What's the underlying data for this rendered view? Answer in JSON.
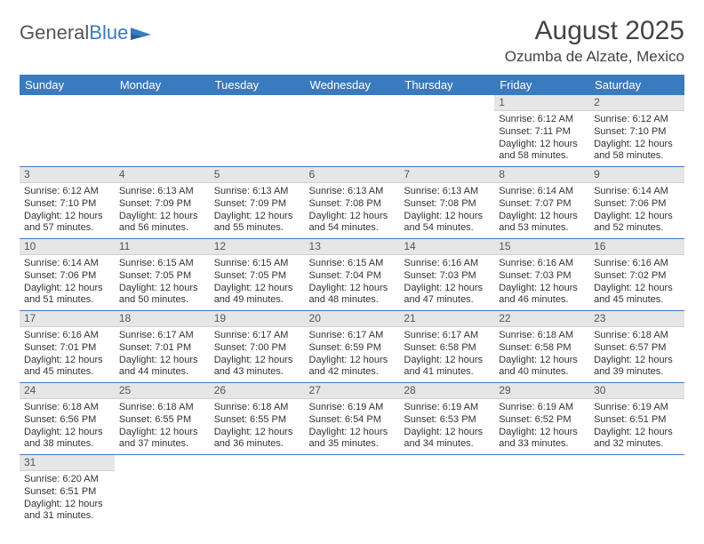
{
  "logo": {
    "text_general": "General",
    "text_blue": "Blue"
  },
  "header": {
    "month_title": "August 2025",
    "location": "Ozumba de Alzate, Mexico"
  },
  "colors": {
    "header_bg": "#3a7bbf",
    "header_fg": "#ffffff",
    "daynum_bg": "#e6e6e6",
    "cell_border": "#3a7bbf"
  },
  "day_headers": [
    "Sunday",
    "Monday",
    "Tuesday",
    "Wednesday",
    "Thursday",
    "Friday",
    "Saturday"
  ],
  "weeks": [
    [
      null,
      null,
      null,
      null,
      null,
      {
        "n": "1",
        "sunrise": "6:12 AM",
        "sunset": "7:11 PM",
        "day_h": "12",
        "day_m": "58"
      },
      {
        "n": "2",
        "sunrise": "6:12 AM",
        "sunset": "7:10 PM",
        "day_h": "12",
        "day_m": "58"
      }
    ],
    [
      {
        "n": "3",
        "sunrise": "6:12 AM",
        "sunset": "7:10 PM",
        "day_h": "12",
        "day_m": "57"
      },
      {
        "n": "4",
        "sunrise": "6:13 AM",
        "sunset": "7:09 PM",
        "day_h": "12",
        "day_m": "56"
      },
      {
        "n": "5",
        "sunrise": "6:13 AM",
        "sunset": "7:09 PM",
        "day_h": "12",
        "day_m": "55"
      },
      {
        "n": "6",
        "sunrise": "6:13 AM",
        "sunset": "7:08 PM",
        "day_h": "12",
        "day_m": "54"
      },
      {
        "n": "7",
        "sunrise": "6:13 AM",
        "sunset": "7:08 PM",
        "day_h": "12",
        "day_m": "54"
      },
      {
        "n": "8",
        "sunrise": "6:14 AM",
        "sunset": "7:07 PM",
        "day_h": "12",
        "day_m": "53"
      },
      {
        "n": "9",
        "sunrise": "6:14 AM",
        "sunset": "7:06 PM",
        "day_h": "12",
        "day_m": "52"
      }
    ],
    [
      {
        "n": "10",
        "sunrise": "6:14 AM",
        "sunset": "7:06 PM",
        "day_h": "12",
        "day_m": "51"
      },
      {
        "n": "11",
        "sunrise": "6:15 AM",
        "sunset": "7:05 PM",
        "day_h": "12",
        "day_m": "50"
      },
      {
        "n": "12",
        "sunrise": "6:15 AM",
        "sunset": "7:05 PM",
        "day_h": "12",
        "day_m": "49"
      },
      {
        "n": "13",
        "sunrise": "6:15 AM",
        "sunset": "7:04 PM",
        "day_h": "12",
        "day_m": "48"
      },
      {
        "n": "14",
        "sunrise": "6:16 AM",
        "sunset": "7:03 PM",
        "day_h": "12",
        "day_m": "47"
      },
      {
        "n": "15",
        "sunrise": "6:16 AM",
        "sunset": "7:03 PM",
        "day_h": "12",
        "day_m": "46"
      },
      {
        "n": "16",
        "sunrise": "6:16 AM",
        "sunset": "7:02 PM",
        "day_h": "12",
        "day_m": "45"
      }
    ],
    [
      {
        "n": "17",
        "sunrise": "6:16 AM",
        "sunset": "7:01 PM",
        "day_h": "12",
        "day_m": "45"
      },
      {
        "n": "18",
        "sunrise": "6:17 AM",
        "sunset": "7:01 PM",
        "day_h": "12",
        "day_m": "44"
      },
      {
        "n": "19",
        "sunrise": "6:17 AM",
        "sunset": "7:00 PM",
        "day_h": "12",
        "day_m": "43"
      },
      {
        "n": "20",
        "sunrise": "6:17 AM",
        "sunset": "6:59 PM",
        "day_h": "12",
        "day_m": "42"
      },
      {
        "n": "21",
        "sunrise": "6:17 AM",
        "sunset": "6:58 PM",
        "day_h": "12",
        "day_m": "41"
      },
      {
        "n": "22",
        "sunrise": "6:18 AM",
        "sunset": "6:58 PM",
        "day_h": "12",
        "day_m": "40"
      },
      {
        "n": "23",
        "sunrise": "6:18 AM",
        "sunset": "6:57 PM",
        "day_h": "12",
        "day_m": "39"
      }
    ],
    [
      {
        "n": "24",
        "sunrise": "6:18 AM",
        "sunset": "6:56 PM",
        "day_h": "12",
        "day_m": "38"
      },
      {
        "n": "25",
        "sunrise": "6:18 AM",
        "sunset": "6:55 PM",
        "day_h": "12",
        "day_m": "37"
      },
      {
        "n": "26",
        "sunrise": "6:18 AM",
        "sunset": "6:55 PM",
        "day_h": "12",
        "day_m": "36"
      },
      {
        "n": "27",
        "sunrise": "6:19 AM",
        "sunset": "6:54 PM",
        "day_h": "12",
        "day_m": "35"
      },
      {
        "n": "28",
        "sunrise": "6:19 AM",
        "sunset": "6:53 PM",
        "day_h": "12",
        "day_m": "34"
      },
      {
        "n": "29",
        "sunrise": "6:19 AM",
        "sunset": "6:52 PM",
        "day_h": "12",
        "day_m": "33"
      },
      {
        "n": "30",
        "sunrise": "6:19 AM",
        "sunset": "6:51 PM",
        "day_h": "12",
        "day_m": "32"
      }
    ],
    [
      {
        "n": "31",
        "sunrise": "6:20 AM",
        "sunset": "6:51 PM",
        "day_h": "12",
        "day_m": "31"
      },
      null,
      null,
      null,
      null,
      null,
      null
    ]
  ],
  "labels": {
    "sunrise": "Sunrise:",
    "sunset": "Sunset:",
    "daylight_prefix": "Daylight:",
    "hours_word": "hours",
    "and_word": "and",
    "minutes_word": "minutes."
  }
}
